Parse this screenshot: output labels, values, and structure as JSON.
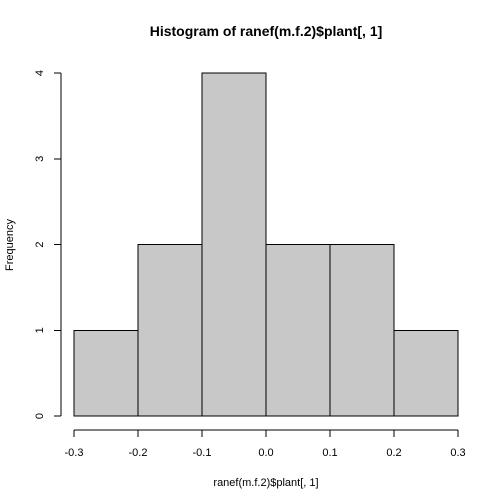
{
  "chart_data": {
    "type": "bar",
    "title": "Histogram of ranef(m.f.2)$plant[, 1]",
    "xlabel": "ranef(m.f.2)$plant[, 1]",
    "ylabel": "Frequency",
    "bins": [
      {
        "start": -0.3,
        "end": -0.2,
        "count": 1
      },
      {
        "start": -0.2,
        "end": -0.1,
        "count": 2
      },
      {
        "start": -0.1,
        "end": 0.0,
        "count": 4
      },
      {
        "start": 0.0,
        "end": 0.1,
        "count": 2
      },
      {
        "start": 0.1,
        "end": 0.2,
        "count": 2
      },
      {
        "start": 0.2,
        "end": 0.3,
        "count": 1
      }
    ],
    "xlim": [
      -0.3,
      0.3
    ],
    "ylim": [
      0,
      4
    ],
    "x_ticks": [
      -0.3,
      -0.2,
      -0.1,
      0.0,
      0.1,
      0.2,
      0.3
    ],
    "x_tick_labels": [
      "-0.3",
      "-0.2",
      "-0.1",
      "0.0",
      "0.1",
      "0.2",
      "0.3"
    ],
    "y_ticks": [
      0,
      1,
      2,
      3,
      4
    ],
    "y_tick_labels": [
      "0",
      "1",
      "2",
      "3",
      "4"
    ],
    "bar_color": "#c8c8c8",
    "grid": false
  }
}
